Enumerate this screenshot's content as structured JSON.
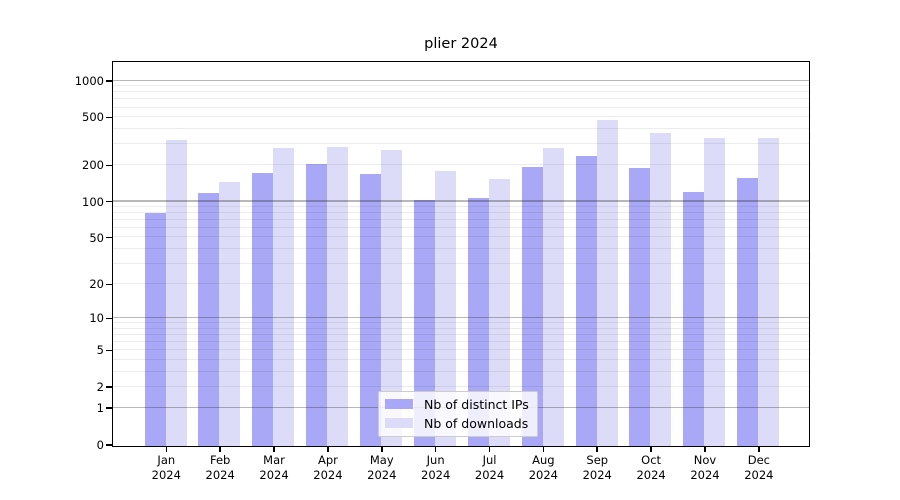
{
  "chart_data": {
    "type": "bar",
    "title": "plier 2024",
    "xlabel": "",
    "ylabel": "",
    "y_scale": "log10(1+x)",
    "ylim": [
      0,
      1440
    ],
    "yticks": [
      0,
      1,
      2,
      5,
      10,
      20,
      50,
      100,
      200,
      500,
      1000
    ],
    "grid": true,
    "legend_position": "lower center",
    "categories": [
      "Jan 2024",
      "Feb 2024",
      "Mar 2024",
      "Apr 2024",
      "May 2024",
      "Jun 2024",
      "Jul 2024",
      "Aug 2024",
      "Sep 2024",
      "Oct 2024",
      "Nov 2024",
      "Dec 2024"
    ],
    "series": [
      {
        "name": "Nb of distinct IPs",
        "color": "#a8a8f6",
        "values": [
          82,
          120,
          176,
          210,
          171,
          105,
          108,
          196,
          243,
          192,
          123,
          161
        ]
      },
      {
        "name": "Nb of downloads",
        "color": "#dcdcf9",
        "values": [
          331,
          147,
          282,
          287,
          270,
          181,
          156,
          282,
          478,
          373,
          340,
          345
        ]
      }
    ]
  },
  "colors": {
    "background": "#ffffff",
    "spine": "#000000",
    "major_gridline": "#b5b5b5",
    "minor_gridline": "#e9e9e9",
    "legend_border": "#cccccc"
  }
}
